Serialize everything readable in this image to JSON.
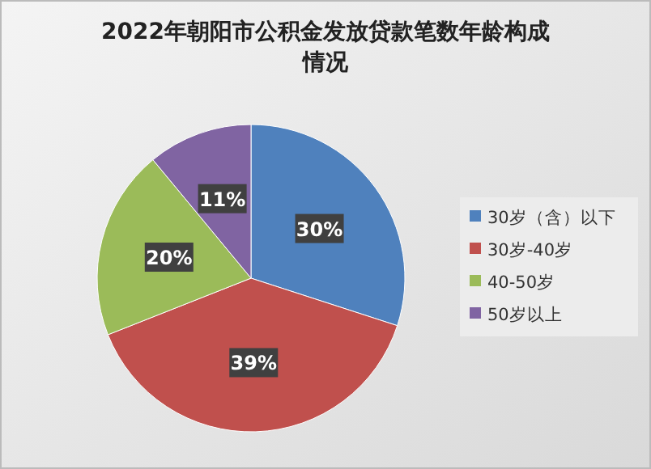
{
  "chart_data": {
    "type": "pie",
    "title": "2022年朝阳市公积金发放贷款笔数年龄构成情况",
    "categories": [
      "30岁（含）以下",
      "30岁-40岁",
      "40-50岁",
      "50岁以上"
    ],
    "values": [
      30,
      39,
      20,
      11
    ],
    "value_labels": [
      "30%",
      "39%",
      "20%",
      "11%"
    ],
    "colors": [
      "#4f81bd",
      "#c0504d",
      "#9bbb59",
      "#8064a2"
    ],
    "legend": "right"
  }
}
